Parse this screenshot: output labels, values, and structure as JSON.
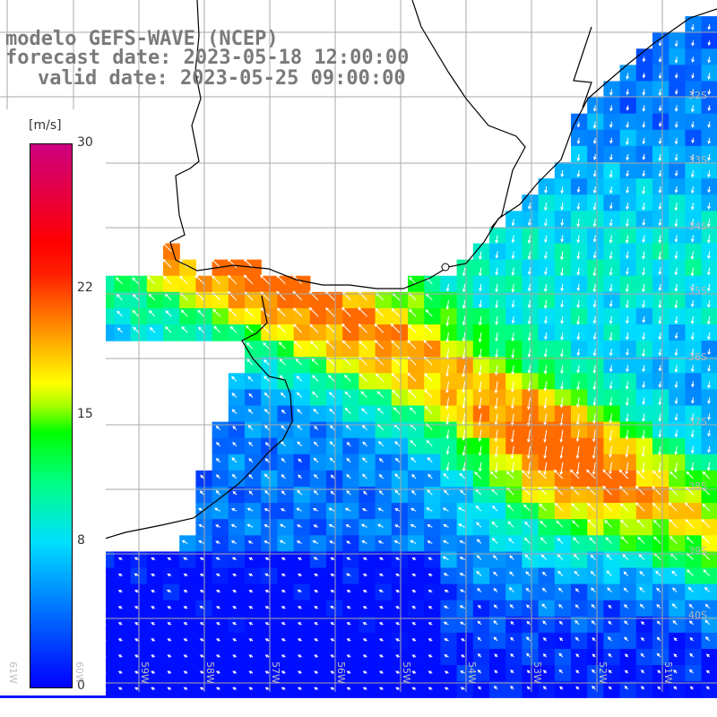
{
  "titles": {
    "line1": "modelo GEFS-WAVE (NCEP)",
    "line2": "forecast date: 2023-05-18 12:00:00",
    "line3": "valid date: 2023-05-25 09:00:00"
  },
  "legend": {
    "unit": "[m/s]",
    "ticks": [
      {
        "label": "30",
        "value": 30
      },
      {
        "label": "22",
        "value": 22
      },
      {
        "label": "15",
        "value": 15
      },
      {
        "label": "8",
        "value": 8
      },
      {
        "label": "0",
        "value": 0
      }
    ],
    "range": [
      0,
      30
    ]
  },
  "axes": {
    "lat_labels": [
      "32S",
      "33S",
      "34S",
      "35S",
      "36S",
      "37S",
      "38S",
      "39S",
      "40S"
    ],
    "lon_labels": [
      "61W",
      "60W",
      "59W",
      "58W",
      "57W",
      "56W",
      "55W",
      "54W",
      "53W",
      "52W",
      "51W"
    ]
  },
  "colors": {
    "land": "#ffffff",
    "coast": "#000000",
    "grid": "#a8a8a8",
    "arrows": "#ffffff",
    "title": "#7a7a7a"
  }
}
